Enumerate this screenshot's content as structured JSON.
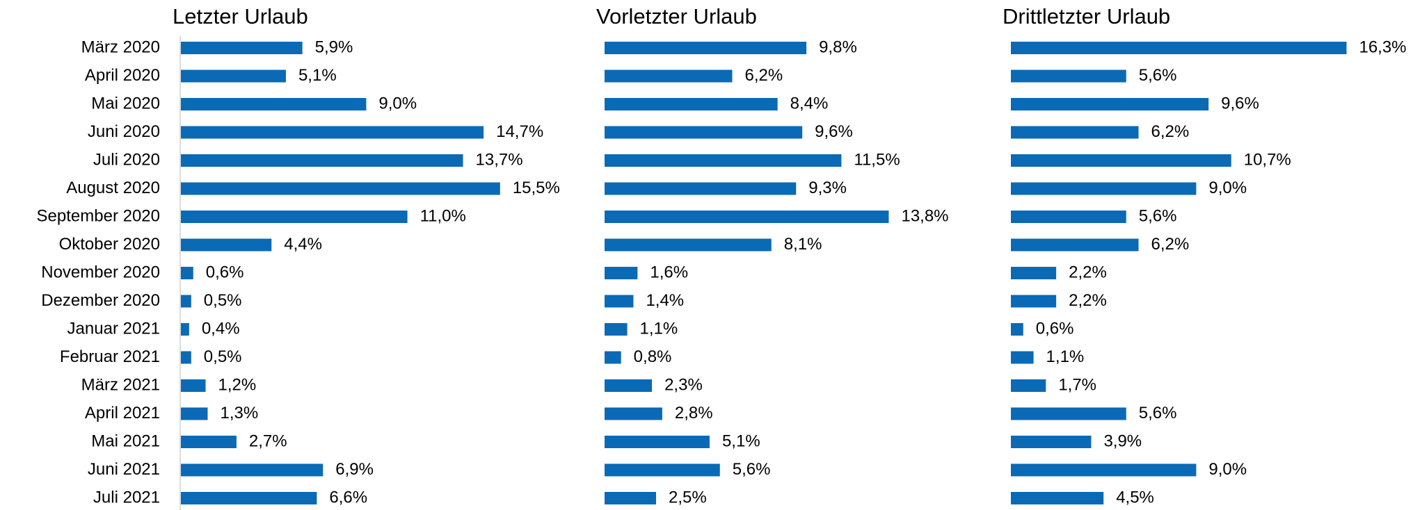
{
  "chart_data": [
    {
      "type": "bar",
      "orientation": "horizontal",
      "title": "Letzter Urlaub",
      "color": "#0a6ab6",
      "categories": [
        "März 2020",
        "April 2020",
        "Mai 2020",
        "Juni 2020",
        "Juli 2020",
        "August 2020",
        "September 2020",
        "Oktober 2020",
        "November 2020",
        "Dezember 2020",
        "Januar 2021",
        "Februar 2021",
        "März 2021",
        "April 2021",
        "Mai 2021",
        "Juni 2021",
        "Juli 2021"
      ],
      "values": [
        5.9,
        5.1,
        9.0,
        14.7,
        13.7,
        15.5,
        11.0,
        4.4,
        0.6,
        0.5,
        0.4,
        0.5,
        1.2,
        1.3,
        2.7,
        6.9,
        6.6
      ],
      "value_labels": [
        "5,9%",
        "5,1%",
        "9,0%",
        "14,7%",
        "13,7%",
        "15,5%",
        "11,0%",
        "4,4%",
        "0,6%",
        "0,5%",
        "0,4%",
        "0,5%",
        "1,2%",
        "1,3%",
        "2,7%",
        "6,9%",
        "6,6%"
      ]
    },
    {
      "type": "bar",
      "orientation": "horizontal",
      "title": "Vorletzter Urlaub",
      "color": "#0a6ab6",
      "values": [
        9.8,
        6.2,
        8.4,
        9.6,
        11.5,
        9.3,
        13.8,
        8.1,
        1.6,
        1.4,
        1.1,
        0.8,
        2.3,
        2.8,
        5.1,
        5.6,
        2.5
      ],
      "value_labels": [
        "9,8%",
        "6,2%",
        "8,4%",
        "9,6%",
        "11,5%",
        "9,3%",
        "13,8%",
        "8,1%",
        "1,6%",
        "1,4%",
        "1,1%",
        "0,8%",
        "2,3%",
        "2,8%",
        "5,1%",
        "5,6%",
        "2,5%"
      ]
    },
    {
      "type": "bar",
      "orientation": "horizontal",
      "title": "Drittletzter Urlaub",
      "color": "#0a6ab6",
      "values": [
        16.3,
        5.6,
        9.6,
        6.2,
        10.7,
        9.0,
        5.6,
        6.2,
        2.2,
        2.2,
        0.6,
        1.1,
        1.7,
        5.6,
        3.9,
        9.0,
        4.5
      ],
      "value_labels": [
        "16,3%",
        "5,6%",
        "9,6%",
        "6,2%",
        "10,7%",
        "9,0%",
        "5,6%",
        "6,2%",
        "2,2%",
        "2,2%",
        "0,6%",
        "1,1%",
        "1,7%",
        "5,6%",
        "3,9%",
        "9,0%",
        "4,5%"
      ]
    }
  ]
}
